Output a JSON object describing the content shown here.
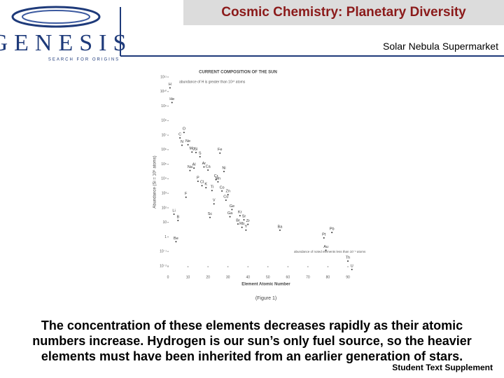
{
  "header": {
    "title": "Cosmic Chemistry: Planetary Diversity",
    "logo": "GENESIS",
    "logo_tagline": "SEARCH FOR ORIGINS",
    "subtitle": "Solar Nebula Supermarket"
  },
  "chart_data": {
    "type": "scatter",
    "title": "CURRENT COMPOSITION OF THE SUN",
    "annotations": [
      "abundance of H is greater than 10¹⁰ atoms",
      "abundance of noted elements less than 10⁻¹ atoms"
    ],
    "x_label": "Element Atomic Number",
    "y_label": "Abundance (Si = 10⁶ atoms)",
    "x": [
      1,
      2,
      3,
      4,
      5,
      6,
      7,
      8,
      9,
      10,
      11,
      12,
      13,
      14,
      15,
      16,
      17,
      18,
      19,
      20,
      21,
      22,
      23,
      24,
      25,
      26,
      27,
      28,
      29,
      30,
      31,
      32,
      35,
      36,
      37,
      38,
      39,
      40,
      56,
      78,
      79,
      82,
      90,
      92
    ],
    "point_labels": [
      "H",
      "He",
      "Li",
      "Be",
      "B",
      "C",
      "N",
      "O",
      "F",
      "Ne",
      "Na",
      "Mg",
      "Al",
      "Si",
      "P",
      "S",
      "Cl",
      "Ar",
      "K",
      "Ca",
      "Sc",
      "Ti",
      "V",
      "Cr",
      "Mn",
      "Fe",
      "Co",
      "Ni",
      "Cu",
      "Zn",
      "Ga",
      "Ge",
      "Br",
      "Kr",
      "Rb",
      "Sr",
      "Y",
      "Zr",
      "Ba",
      "Pt",
      "Au",
      "Pb",
      "Th",
      "U"
    ],
    "values": [
      27900000000,
      2720000000,
      57,
      0.73,
      21,
      10100000,
      3130000,
      23800000,
      843,
      3440000,
      57400,
      1070000,
      84900,
      1000000,
      10400,
      515000,
      5240,
      101000,
      3770,
      61100,
      34,
      2400,
      293,
      13500,
      9550,
      900000,
      2250,
      49300,
      522,
      1260,
      38,
      119,
      12,
      45,
      7.1,
      23.5,
      4.6,
      11.4,
      4.5,
      1.34,
      0.19,
      3.15,
      0.034,
      0.009
    ],
    "color": "#333333",
    "log_y": true,
    "xlim": [
      0,
      90
    ],
    "xticks": [
      0,
      10,
      20,
      30,
      40,
      50,
      60,
      70,
      80,
      90
    ],
    "ylim": [
      0.01,
      100000000000
    ],
    "yticks": [
      {
        "value": 0.01,
        "label": "10⁻²"
      },
      {
        "value": 0.1,
        "label": "10⁻¹"
      },
      1,
      10,
      {
        "value": 100,
        "label": "10²"
      },
      {
        "value": 1000,
        "label": "10³"
      },
      {
        "value": 10000,
        "label": "10⁴"
      },
      {
        "value": 100000,
        "label": "10⁵"
      },
      {
        "value": 1000000,
        "label": "10⁶"
      },
      {
        "value": 10000000,
        "label": "10⁷"
      },
      {
        "value": 100000000,
        "label": "10⁸"
      },
      {
        "value": 1000000000,
        "label": "10⁹"
      },
      {
        "value": 10000000000,
        "label": "10¹⁰"
      },
      {
        "value": 100000000000,
        "label": "10¹¹"
      }
    ],
    "figure_label": "(Figure 1)"
  },
  "caption": [
    "The concentration of these elements decreases rapidly as their atomic",
    "numbers increase. Hydrogen is our sun’s only fuel source, so the heavier",
    "elements must have been inherited from an earlier generation of stars."
  ],
  "footer": "Student Text Supplement"
}
